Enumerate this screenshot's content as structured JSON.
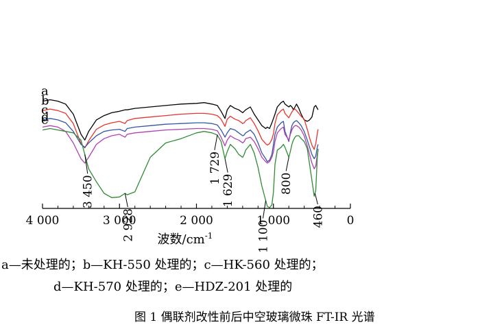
{
  "chart_data": {
    "type": "line",
    "xlabel": "波数/cm",
    "xlabel_sup": "-1",
    "xlim": [
      4000,
      0
    ],
    "xticks": [
      {
        "value": 4000,
        "label": "4 000"
      },
      {
        "value": 3000,
        "label": "3 000"
      },
      {
        "value": 2000,
        "label": "2 000"
      },
      {
        "value": 1000,
        "label": "1 000"
      },
      {
        "value": 0,
        "label": "0"
      }
    ],
    "series": [
      {
        "name": "a",
        "color": "#000000",
        "offset": 0,
        "x": [
          4000,
          3900,
          3800,
          3700,
          3600,
          3500,
          3450,
          3400,
          3300,
          3200,
          3100,
          3000,
          2928,
          2900,
          2800,
          2600,
          2400,
          2200,
          2000,
          1900,
          1800,
          1729,
          1680,
          1629,
          1600,
          1560,
          1500,
          1450,
          1400,
          1380,
          1360,
          1300,
          1250,
          1200,
          1150,
          1100,
          1080,
          1050,
          1020,
          1000,
          980,
          950,
          900,
          870,
          850,
          800,
          780,
          760,
          740,
          720,
          700,
          670,
          640,
          600,
          560,
          530,
          500,
          470,
          450,
          430,
          420
        ],
        "y": [
          99,
          100,
          99,
          97,
          90,
          76,
          72,
          78,
          86,
          89,
          91,
          92,
          93,
          93,
          94,
          95,
          96,
          97,
          97.5,
          98,
          97,
          96,
          92,
          87,
          93,
          96,
          94,
          93,
          91,
          92,
          93,
          95,
          90,
          86,
          82,
          80,
          81,
          80,
          84,
          87,
          90,
          95,
          98,
          99,
          97,
          95,
          96,
          95,
          93,
          95,
          97,
          94,
          90,
          86,
          85,
          86,
          88,
          95,
          96,
          94,
          93
        ]
      },
      {
        "name": "b",
        "color": "#e8342c",
        "offset": -6.5,
        "x": [
          4000,
          3900,
          3800,
          3700,
          3600,
          3500,
          3450,
          3400,
          3300,
          3200,
          3100,
          3000,
          2928,
          2900,
          2800,
          2600,
          2400,
          2200,
          2000,
          1900,
          1800,
          1729,
          1680,
          1629,
          1600,
          1560,
          1500,
          1450,
          1400,
          1380,
          1360,
          1300,
          1250,
          1200,
          1150,
          1100,
          1080,
          1050,
          1020,
          1000,
          980,
          950,
          900,
          870,
          850,
          800,
          780,
          760,
          740,
          720,
          700,
          670,
          640,
          600,
          560,
          530,
          500,
          470,
          450,
          430,
          420
        ],
        "y": [
          99,
          100,
          99,
          97,
          90,
          76,
          73,
          78,
          86,
          89,
          90.5,
          91.5,
          90,
          92,
          93.5,
          94.5,
          95.5,
          96.5,
          97,
          97,
          96.5,
          95.5,
          93,
          88,
          93,
          95,
          93,
          92,
          90,
          90.5,
          92,
          94,
          90,
          85,
          79,
          76,
          75,
          76,
          79,
          83,
          90,
          96,
          99,
          100,
          97,
          94,
          96,
          98,
          99.5,
          100,
          99,
          97,
          95,
          93,
          86,
          80,
          75,
          72,
          76,
          83,
          86
        ]
      },
      {
        "name": "c",
        "color": "#3654a6",
        "offset": -13,
        "x": [
          4000,
          3900,
          3800,
          3700,
          3600,
          3500,
          3450,
          3400,
          3300,
          3200,
          3100,
          3000,
          2928,
          2900,
          2800,
          2600,
          2400,
          2200,
          2000,
          1900,
          1800,
          1729,
          1680,
          1629,
          1600,
          1560,
          1500,
          1450,
          1400,
          1380,
          1360,
          1300,
          1250,
          1200,
          1150,
          1100,
          1080,
          1050,
          1020,
          1000,
          980,
          950,
          900,
          870,
          850,
          800,
          780,
          760,
          740,
          720,
          700,
          670,
          640,
          600,
          560,
          530,
          500,
          470,
          450,
          430,
          420
        ],
        "y": [
          99,
          100,
          99,
          97,
          91,
          82,
          80,
          83,
          88,
          91,
          92,
          92.5,
          91,
          93,
          94,
          95,
          96,
          96.5,
          97,
          97,
          96.5,
          95.5,
          92,
          87,
          90,
          93,
          92,
          90,
          88,
          88.5,
          90,
          92,
          89,
          83,
          76,
          72,
          70,
          71,
          75,
          82,
          89,
          94,
          97,
          98,
          91,
          84,
          90,
          95,
          97,
          98,
          98.5,
          97,
          95,
          91,
          85,
          80,
          75,
          72,
          74,
          80,
          82
        ]
      },
      {
        "name": "d",
        "color": "#b13fb1",
        "offset": -18,
        "x": [
          4000,
          3900,
          3800,
          3700,
          3600,
          3500,
          3450,
          3400,
          3300,
          3200,
          3100,
          3000,
          2928,
          2900,
          2800,
          2600,
          2400,
          2200,
          2000,
          1900,
          1800,
          1729,
          1680,
          1629,
          1600,
          1560,
          1500,
          1450,
          1400,
          1380,
          1360,
          1300,
          1250,
          1200,
          1150,
          1100,
          1080,
          1050,
          1020,
          1000,
          980,
          950,
          900,
          870,
          850,
          800,
          780,
          760,
          740,
          720,
          700,
          670,
          640,
          600,
          560,
          530,
          500,
          470,
          450,
          430,
          420
        ],
        "y": [
          99,
          100,
          99,
          96,
          88,
          77,
          74,
          78,
          87,
          91,
          93,
          94,
          92,
          94,
          95,
          96,
          97,
          97.5,
          98,
          98,
          97.5,
          96.5,
          92,
          86,
          90,
          93,
          91,
          90,
          88,
          89,
          91,
          92,
          89,
          84,
          78,
          75,
          74,
          75,
          78,
          82,
          89,
          95,
          98,
          99,
          94,
          90,
          94,
          97,
          99,
          100,
          100,
          99,
          97,
          93,
          86,
          80,
          74,
          70,
          72,
          80,
          83
        ]
      },
      {
        "name": "e",
        "color": "#2e8b32",
        "offset": -20,
        "x": [
          4000,
          3900,
          3800,
          3700,
          3600,
          3500,
          3450,
          3400,
          3300,
          3200,
          3100,
          3000,
          2928,
          2900,
          2800,
          2600,
          2400,
          2200,
          2000,
          1900,
          1800,
          1729,
          1680,
          1629,
          1600,
          1560,
          1500,
          1450,
          1400,
          1380,
          1360,
          1300,
          1250,
          1200,
          1150,
          1100,
          1080,
          1050,
          1020,
          1000,
          980,
          950,
          900,
          870,
          850,
          800,
          780,
          760,
          740,
          720,
          700,
          670,
          640,
          600,
          560,
          530,
          500,
          470,
          450,
          430,
          420
        ],
        "y": [
          99,
          100,
          99,
          98,
          97,
          92,
          82,
          72,
          63,
          55,
          52,
          52.5,
          55,
          54,
          56,
          80,
          90,
          93,
          97,
          98,
          97,
          95.5,
          91,
          79,
          84,
          89,
          86,
          82,
          80,
          82,
          85,
          89,
          83,
          73,
          60,
          50,
          46,
          45,
          47,
          56,
          75,
          85,
          87,
          89,
          87,
          80,
          84,
          89,
          92,
          94,
          95,
          95,
          93,
          91,
          86,
          75,
          64,
          53,
          57,
          80,
          86
        ]
      }
    ],
    "annotations": [
      "3 450",
      "2 928",
      "1 729",
      "1 629",
      "1 100",
      "800",
      "460"
    ]
  },
  "legend": {
    "line1": "a—未处理的；b—KH-550 处理的；c—HK-560 处理的；",
    "line2": "d—KH-570 处理的；e—HDZ-201 处理的"
  },
  "caption": "图 1  偶联剂改性前后中空玻璃微珠 FT-IR 光谱"
}
